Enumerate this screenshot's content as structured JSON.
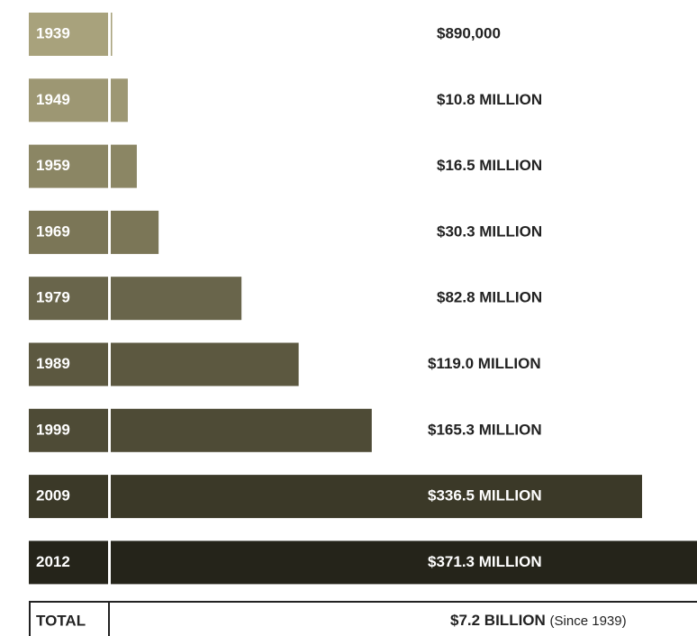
{
  "chart_data": {
    "type": "bar",
    "categories": [
      "1939",
      "1949",
      "1959",
      "1969",
      "1979",
      "1989",
      "1999",
      "2009",
      "2012"
    ],
    "values": [
      890000,
      10800000,
      16500000,
      30300000,
      82800000,
      119000000,
      165300000,
      336500000,
      371300000
    ],
    "value_labels": [
      "$890,000",
      "$10.8 MILLION",
      "$16.5 MILLION",
      "$30.3 MILLION",
      "$82.8 MILLION",
      "$119.0 MILLION",
      "$165.3 MILLION",
      "$336.5 MILLION",
      "$371.3 MILLION"
    ],
    "colors": [
      "#a8a27c",
      "#9d9773",
      "#8b8664",
      "#7b7657",
      "#69654b",
      "#5c5840",
      "#4e4b36",
      "#3b3928",
      "#25241a"
    ],
    "total": {
      "label": "TOTAL",
      "value_label": "$7.2 BILLION",
      "note": "(Since 1939)"
    }
  }
}
